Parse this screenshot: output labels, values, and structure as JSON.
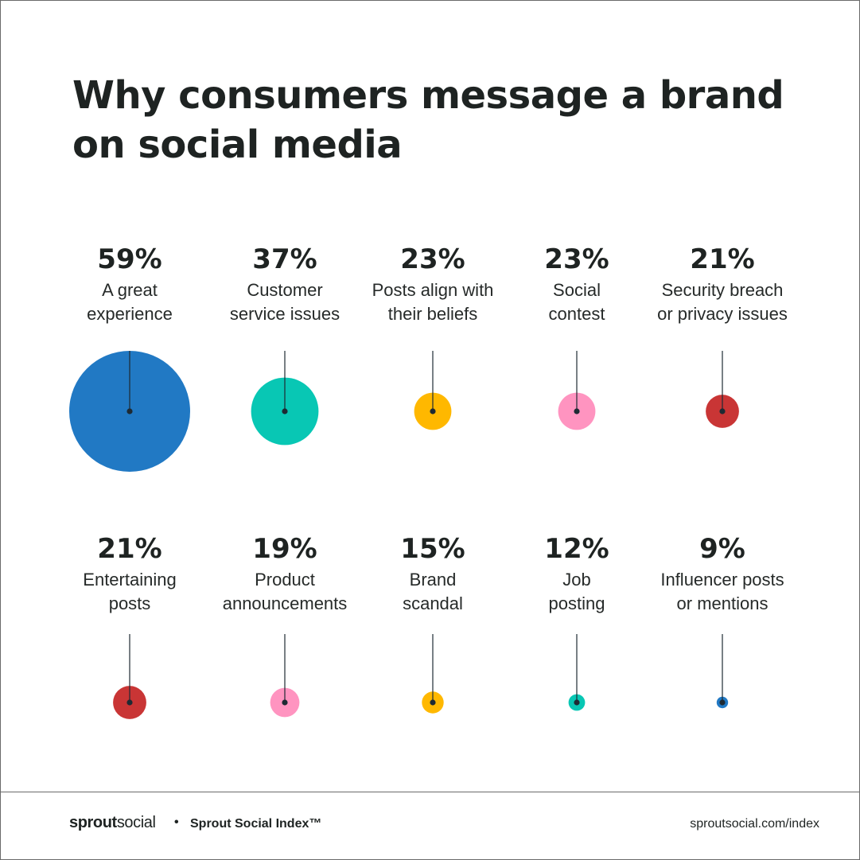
{
  "title": "Why consumers message a brand on social media",
  "footer": {
    "brand_part1": "sprout",
    "brand_part2": "social",
    "separator": "•",
    "index_name": "Sprout Social Index™",
    "url": "sproutsocial.com/index"
  },
  "chart_data": {
    "type": "bubble",
    "title": "Why consumers message a brand on social media",
    "unit": "%",
    "categories": [
      {
        "label_lines": [
          "A great",
          "experience"
        ],
        "value": 59,
        "display": "59%",
        "color": "#2179c4"
      },
      {
        "label_lines": [
          "Customer",
          "service issues"
        ],
        "value": 37,
        "display": "37%",
        "color": "#08c7b4"
      },
      {
        "label_lines": [
          "Posts align with",
          "their beliefs"
        ],
        "value": 23,
        "display": "23%",
        "color": "#ffb800"
      },
      {
        "label_lines": [
          "Social",
          "contest"
        ],
        "value": 23,
        "display": "23%",
        "color": "#ff94c0"
      },
      {
        "label_lines": [
          "Security breach",
          "or privacy issues"
        ],
        "value": 21,
        "display": "21%",
        "color": "#c93535"
      },
      {
        "label_lines": [
          "Entertaining",
          "posts"
        ],
        "value": 21,
        "display": "21%",
        "color": "#c93535"
      },
      {
        "label_lines": [
          "Product",
          "announcements"
        ],
        "value": 19,
        "display": "19%",
        "color": "#ff94c0"
      },
      {
        "label_lines": [
          "Brand",
          "scandal"
        ],
        "value": 15,
        "display": "15%",
        "color": "#ffb800"
      },
      {
        "label_lines": [
          "Job",
          "posting"
        ],
        "value": 12,
        "display": "12%",
        "color": "#08c7b4"
      },
      {
        "label_lines": [
          "Influencer posts",
          "or mentions"
        ],
        "value": 9,
        "display": "9%",
        "color": "#2179c4"
      }
    ],
    "line_color": "#1e2a33"
  }
}
